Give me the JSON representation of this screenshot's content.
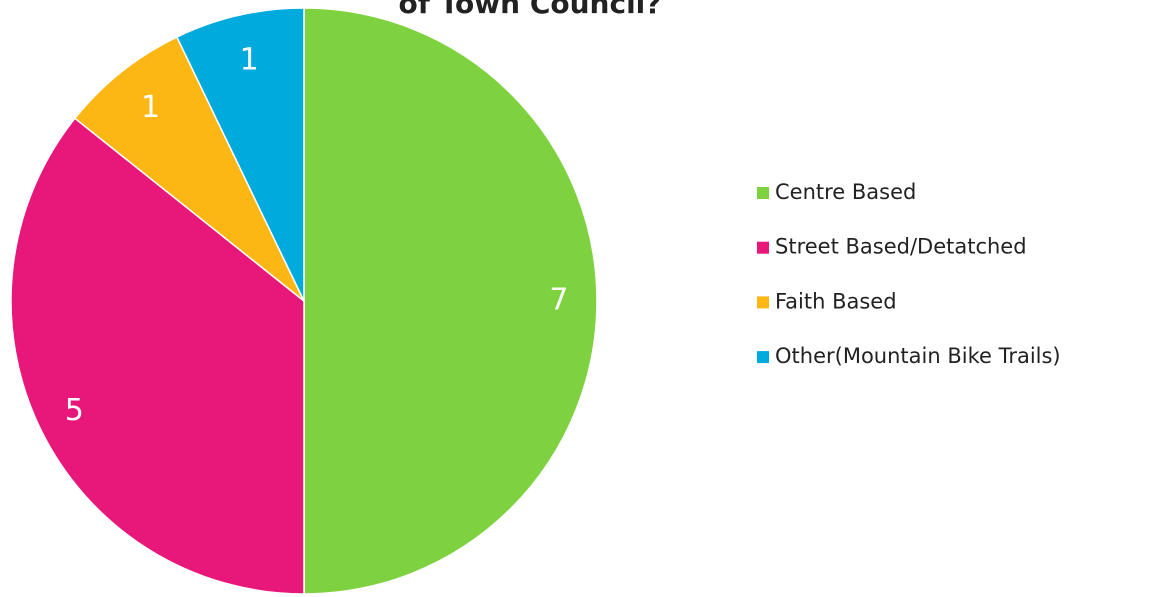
{
  "chart_data": {
    "type": "pie",
    "title": "of Town Council?",
    "categories": [
      "Centre Based",
      "Street Based/Detatched",
      "Faith Based",
      "Other(Mountain Bike Trails)"
    ],
    "values": [
      7,
      5,
      1,
      1
    ],
    "colors": [
      "#7ed23f",
      "#e8177a",
      "#fdb714",
      "#00aadd"
    ],
    "legend": "right"
  }
}
